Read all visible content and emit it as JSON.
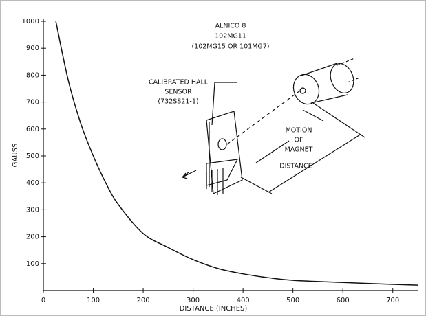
{
  "chart_data": {
    "type": "line",
    "x": [
      25,
      50,
      75,
      100,
      125,
      150,
      200,
      250,
      300,
      350,
      400,
      450,
      500,
      600,
      700,
      750
    ],
    "values": [
      1000,
      780,
      620,
      500,
      400,
      320,
      212,
      160,
      115,
      82,
      62,
      48,
      38,
      30,
      23,
      20
    ],
    "color": "#111111",
    "xlim": [
      0,
      750
    ],
    "xticks": [
      0,
      100,
      200,
      300,
      400,
      500,
      600,
      700
    ],
    "ylim": [
      0,
      1000
    ],
    "yticks": [
      100,
      200,
      300,
      400,
      500,
      600,
      700,
      800,
      900,
      1000
    ],
    "xlabel": "DISTANCE (INCHES)",
    "ylabel": "GAUSS",
    "annotations": [
      "ALNICO 8",
      "102MG11",
      "(102MG15 OR 101MG7)",
      "CALIBRATED HALL",
      "SENSOR",
      "(732SS21-1)",
      "MOTION",
      "OF",
      "MAGNET",
      "DISTANCE"
    ]
  }
}
